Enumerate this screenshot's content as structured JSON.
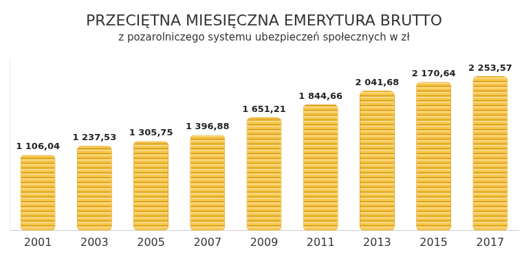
{
  "chart_data": {
    "type": "bar",
    "title": "PRZECIĘTNA MIESIĘCZNA EMERYTURA BRUTTO",
    "subtitle": "z pozarolniczego systemu ubezpieczeń społecznych w zł",
    "categories": [
      "2001",
      "2003",
      "2005",
      "2007",
      "2009",
      "2011",
      "2013",
      "2015",
      "2017"
    ],
    "values": [
      1106.04,
      1237.53,
      1305.75,
      1396.88,
      1651.21,
      1844.66,
      2041.68,
      2170.64,
      2253.57
    ],
    "value_labels": [
      "1 106,04",
      "1 237,53",
      "1 305,75",
      "1 396,88",
      "1 651,21",
      "1 844,66",
      "2 041,68",
      "2 170,64",
      "2 253,57"
    ],
    "color": "#f6c445",
    "ylim": [
      0,
      2500
    ],
    "grid": false,
    "data_labels": true,
    "tick_labels": "x"
  }
}
